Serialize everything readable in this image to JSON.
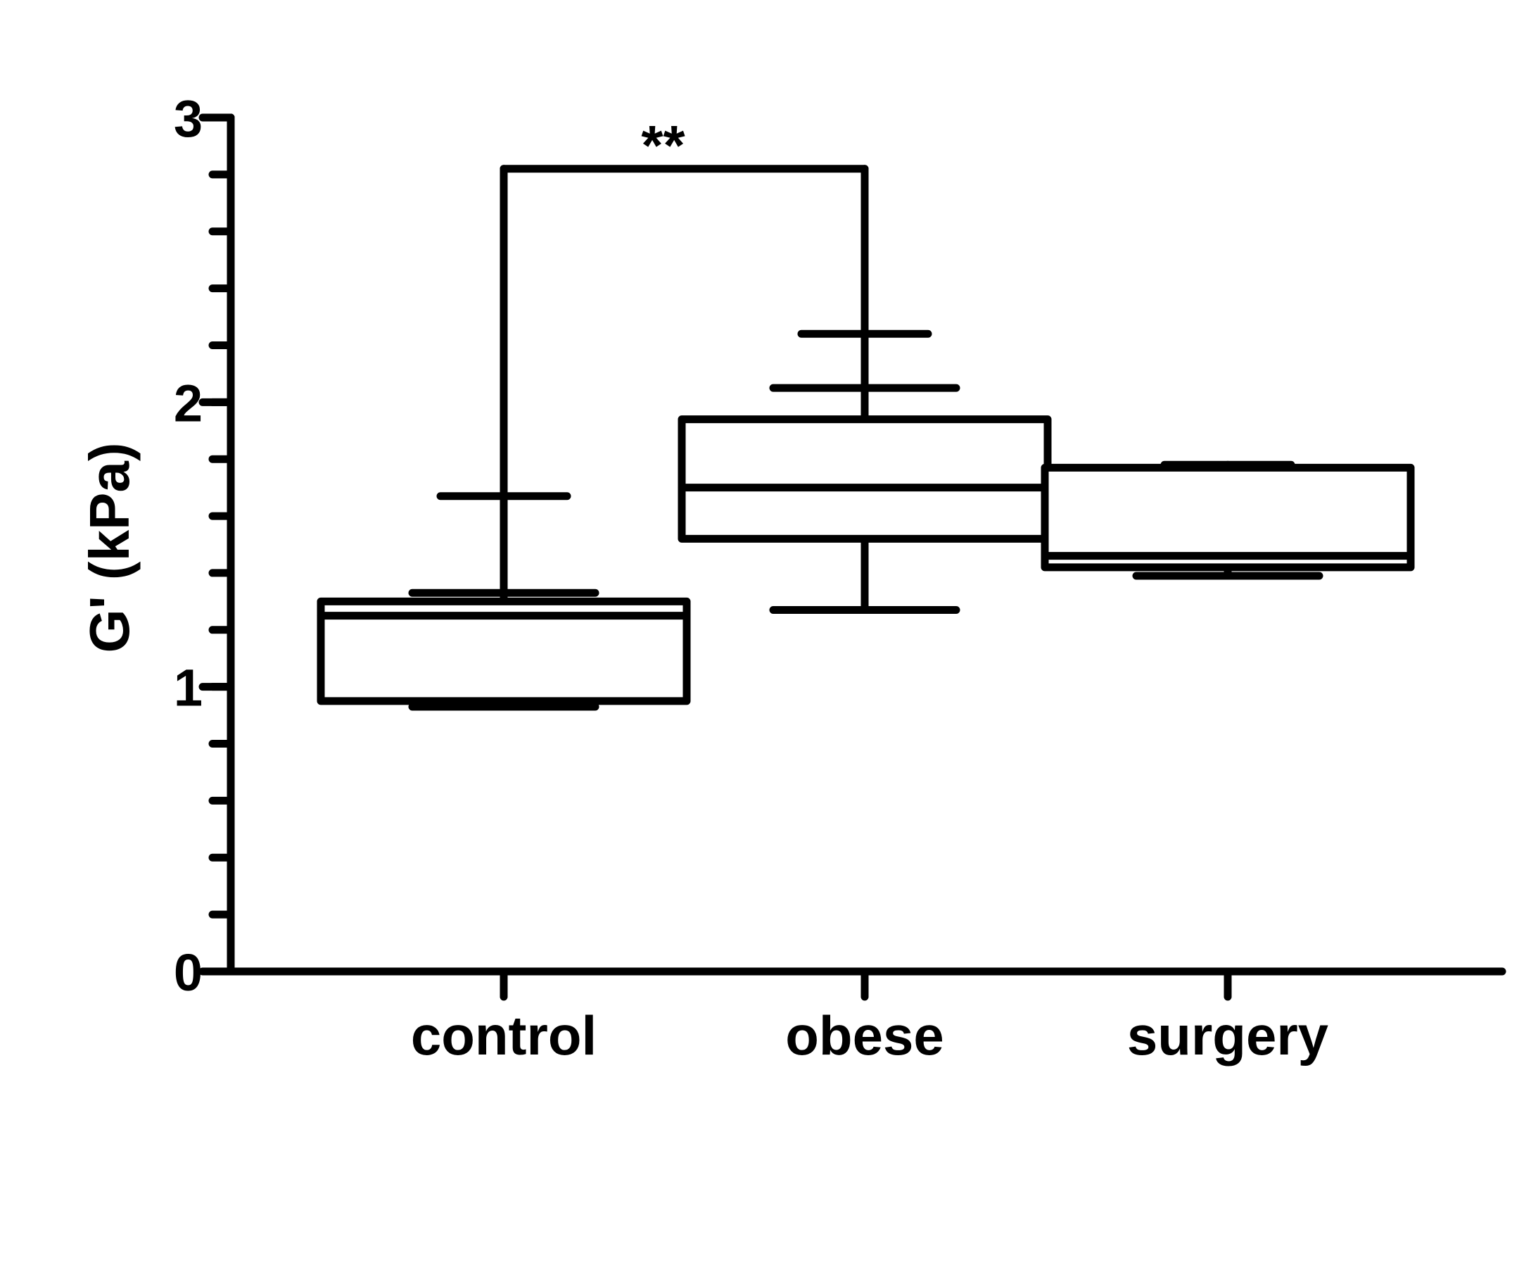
{
  "chart_data": {
    "type": "box",
    "ylabel": "G' (kPa)",
    "xlabel": "",
    "ylim": [
      0,
      3
    ],
    "yticks": [
      "0",
      "1",
      "2",
      "3"
    ],
    "minor_tick_step": 0.2,
    "categories": [
      "control",
      "obese",
      "surgery"
    ],
    "boxes": [
      {
        "category": "control",
        "min": 0.93,
        "q1": 0.95,
        "median": 1.25,
        "q3": 1.3,
        "max": 1.67,
        "extra_lines": [
          1.33
        ]
      },
      {
        "category": "obese",
        "min": 1.27,
        "q1": 1.52,
        "median": 1.7,
        "q3": 1.94,
        "max": 2.24,
        "extra_lines": [
          2.05
        ]
      },
      {
        "category": "surgery",
        "min": 1.39,
        "q1": 1.42,
        "median": 1.46,
        "q3": 1.77,
        "max": 1.78,
        "extra_lines": []
      }
    ],
    "significance": [
      {
        "from": "control",
        "to": "obese",
        "label": "**",
        "y": 2.82
      }
    ],
    "grid": false,
    "legend": "none",
    "color": "#000000"
  }
}
